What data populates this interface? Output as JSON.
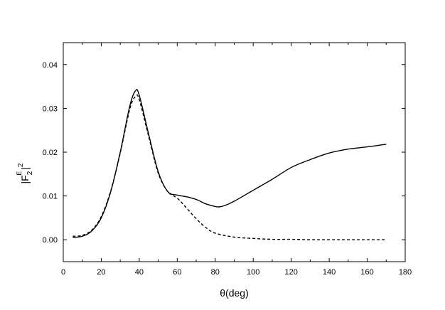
{
  "chart_data": {
    "type": "line",
    "title": "",
    "xlabel": "θ(deg)",
    "ylabel": {
      "base": "|F",
      "subscript": "2",
      "superscript": "E",
      "close": "|",
      "power": "2"
    },
    "xlim": [
      0,
      180
    ],
    "ylim": [
      -0.005,
      0.045
    ],
    "x_ticks": [
      0,
      20,
      40,
      60,
      80,
      100,
      120,
      140,
      160,
      180
    ],
    "x_tick_labels": [
      "0",
      "20",
      "40",
      "60",
      "80",
      "100",
      "120",
      "140",
      "160",
      "180"
    ],
    "y_ticks": [
      0.0,
      0.01,
      0.02,
      0.03,
      0.04
    ],
    "y_tick_labels": [
      "0.00",
      "0.01",
      "0.02",
      "0.03",
      "0.04"
    ],
    "grid": false,
    "legend": "none",
    "series": [
      {
        "style": "solid",
        "color": "#000000",
        "x": [
          5,
          10,
          15,
          20,
          25,
          30,
          35,
          38,
          40,
          45,
          50,
          55,
          60,
          65,
          70,
          75,
          80,
          82,
          85,
          90,
          100,
          110,
          120,
          130,
          140,
          150,
          160,
          170
        ],
        "y": [
          0.0005,
          0.0008,
          0.002,
          0.005,
          0.011,
          0.02,
          0.0305,
          0.034,
          0.033,
          0.024,
          0.0155,
          0.011,
          0.0102,
          0.0098,
          0.0092,
          0.0082,
          0.0076,
          0.0075,
          0.0078,
          0.0088,
          0.0113,
          0.0138,
          0.0165,
          0.0183,
          0.0198,
          0.0207,
          0.0212,
          0.0218
        ]
      },
      {
        "style": "dashed",
        "color": "#000000",
        "x": [
          5,
          10,
          15,
          20,
          25,
          30,
          35,
          38,
          40,
          45,
          50,
          55,
          60,
          65,
          70,
          75,
          80,
          90,
          100,
          110,
          120,
          130,
          140,
          150,
          160,
          170
        ],
        "y": [
          0.0008,
          0.001,
          0.0022,
          0.0053,
          0.0112,
          0.0198,
          0.0298,
          0.0327,
          0.032,
          0.0235,
          0.0152,
          0.011,
          0.0095,
          0.0072,
          0.0048,
          0.0028,
          0.0015,
          0.0006,
          0.0003,
          0.0001,
          0.0001,
          0.0,
          0.0,
          0.0,
          0.0,
          0.0
        ]
      }
    ]
  }
}
